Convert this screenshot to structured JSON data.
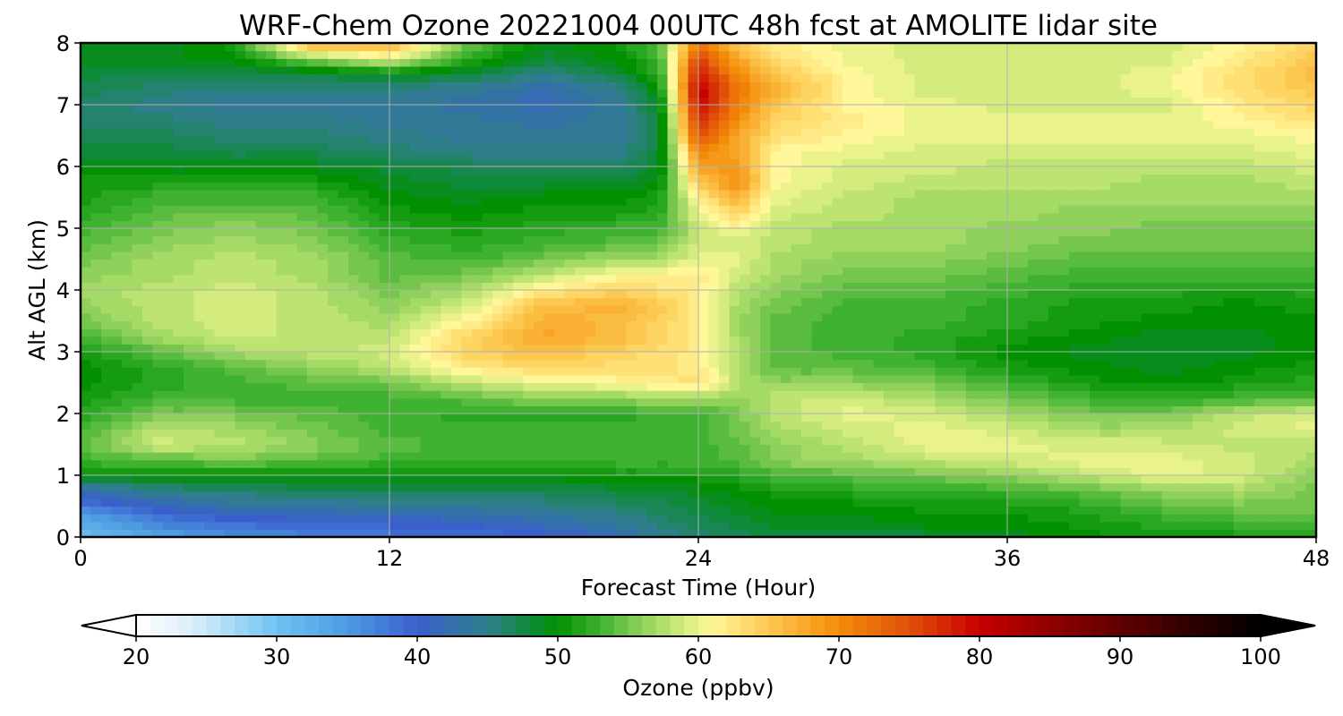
{
  "chart_data": {
    "type": "heatmap",
    "title": "WRF-Chem Ozone  20221004 00UTC 48h fcst at AMOLITE lidar site",
    "xlabel": "Forecast Time (Hour)",
    "ylabel": "Alt AGL (km)",
    "xlim": [
      0,
      48
    ],
    "ylim": [
      0,
      8
    ],
    "xticks": [
      "0",
      "12",
      "24",
      "36",
      "48"
    ],
    "yticks": [
      "0",
      "1",
      "2",
      "3",
      "4",
      "5",
      "6",
      "7",
      "8"
    ],
    "grid": true,
    "x": [
      0,
      3,
      6,
      9,
      12,
      15,
      18,
      21,
      22.5,
      24,
      25.5,
      27,
      30,
      33,
      36,
      39,
      42,
      45,
      48
    ],
    "y": [
      0,
      0.25,
      0.5,
      0.75,
      1,
      1.25,
      1.5,
      1.75,
      2,
      2.25,
      2.5,
      2.75,
      3,
      3.25,
      3.5,
      3.75,
      4,
      4.25,
      4.5,
      4.75,
      5,
      5.25,
      5.5,
      5.75,
      6,
      6.25,
      6.5,
      6.75,
      7,
      7.25,
      7.5,
      7.75,
      8
    ],
    "z": [
      [
        30,
        34,
        36,
        37,
        38,
        38,
        40,
        42,
        44,
        46,
        47,
        48,
        48,
        48,
        49,
        50,
        51,
        51,
        52
      ],
      [
        33,
        37,
        39,
        40,
        40,
        41,
        42,
        44,
        46,
        47,
        48,
        49,
        49,
        50,
        50,
        51,
        52,
        53,
        54
      ],
      [
        37,
        41,
        43,
        43,
        44,
        44,
        45,
        46,
        47,
        48,
        49,
        50,
        50,
        51,
        51,
        52,
        54,
        55,
        55
      ],
      [
        42,
        45,
        46,
        47,
        47,
        47,
        47,
        48,
        48,
        49,
        50,
        51,
        52,
        52,
        53,
        54,
        56,
        57,
        55
      ],
      [
        50,
        50,
        50,
        50,
        50,
        50,
        50,
        51,
        51,
        51,
        52,
        53,
        54,
        55,
        56,
        58,
        60,
        59,
        56
      ],
      [
        53,
        54,
        55,
        54,
        53,
        53,
        53,
        53,
        53,
        53,
        54,
        56,
        57,
        58,
        59,
        60,
        60,
        59,
        57
      ],
      [
        54,
        59,
        58,
        56,
        54,
        53,
        53,
        53,
        53,
        53,
        54,
        56,
        58,
        60,
        60,
        59,
        59,
        58,
        58
      ],
      [
        53,
        58,
        57,
        55,
        53,
        53,
        53,
        53,
        53,
        53,
        55,
        57,
        59,
        60,
        59,
        57,
        57,
        59,
        60
      ],
      [
        52,
        55,
        55,
        54,
        53,
        52,
        52,
        52,
        53,
        53,
        55,
        58,
        60,
        59,
        57,
        55,
        55,
        58,
        59
      ],
      [
        51,
        53,
        53,
        53,
        53,
        54,
        56,
        56,
        57,
        57,
        56,
        58,
        59,
        57,
        55,
        53,
        52,
        53,
        54
      ],
      [
        50,
        52,
        53,
        54,
        55,
        58,
        60,
        61,
        62,
        63,
        58,
        56,
        56,
        55,
        53,
        51,
        50,
        51,
        52
      ],
      [
        50,
        52,
        54,
        56,
        58,
        62,
        64,
        63,
        63,
        62,
        58,
        54,
        54,
        53,
        51,
        50,
        49,
        50,
        51
      ],
      [
        51,
        54,
        57,
        58,
        59,
        64,
        66,
        64,
        63,
        62,
        58,
        54,
        53,
        52,
        50,
        49,
        49,
        49,
        50
      ],
      [
        53,
        57,
        59,
        58,
        58,
        64,
        68,
        66,
        64,
        62,
        57,
        54,
        53,
        52,
        51,
        50,
        49,
        49,
        50
      ],
      [
        55,
        58,
        59,
        58,
        57,
        61,
        67,
        66,
        64,
        62,
        57,
        54,
        53,
        53,
        52,
        51,
        50,
        50,
        50
      ],
      [
        56,
        58,
        59,
        58,
        56,
        59,
        66,
        67,
        65,
        62,
        57,
        55,
        53,
        53,
        52,
        51,
        51,
        50,
        51
      ],
      [
        57,
        58,
        59,
        58,
        55,
        57,
        62,
        64,
        63,
        62,
        58,
        56,
        54,
        54,
        53,
        52,
        52,
        51,
        52
      ],
      [
        56,
        57,
        58,
        57,
        54,
        55,
        58,
        61,
        61,
        62,
        59,
        57,
        55,
        55,
        54,
        53,
        53,
        53,
        53
      ],
      [
        55,
        57,
        58,
        57,
        54,
        53,
        55,
        57,
        57,
        60,
        60,
        57,
        56,
        56,
        55,
        54,
        54,
        54,
        54
      ],
      [
        54,
        56,
        57,
        56,
        53,
        52,
        53,
        54,
        55,
        59,
        59,
        58,
        57,
        57,
        56,
        55,
        55,
        55,
        55
      ],
      [
        53,
        55,
        56,
        55,
        52,
        51,
        52,
        53,
        53,
        58,
        61,
        58,
        57,
        57,
        56,
        56,
        55,
        55,
        55
      ],
      [
        52,
        54,
        55,
        54,
        51,
        50,
        51,
        51,
        52,
        60,
        64,
        59,
        58,
        57,
        57,
        56,
        56,
        56,
        56
      ],
      [
        51,
        53,
        53,
        53,
        50,
        49,
        50,
        50,
        51,
        62,
        67,
        60,
        58,
        57,
        57,
        57,
        57,
        57,
        57
      ],
      [
        51,
        51,
        51,
        51,
        49,
        48,
        48,
        48,
        50,
        65,
        70,
        61,
        59,
        58,
        58,
        58,
        57,
        57,
        58
      ],
      [
        50,
        49,
        49,
        49,
        48,
        47,
        46,
        46,
        49,
        68,
        69,
        61,
        59,
        59,
        58,
        58,
        58,
        58,
        59
      ],
      [
        48,
        48,
        47,
        47,
        46,
        45,
        45,
        45,
        48,
        71,
        68,
        61,
        60,
        59,
        59,
        59,
        59,
        59,
        60
      ],
      [
        47,
        47,
        46,
        46,
        45,
        44,
        44,
        44,
        48,
        75,
        68,
        63,
        61,
        60,
        60,
        60,
        60,
        60,
        61
      ],
      [
        46,
        46,
        45,
        45,
        44,
        44,
        43,
        44,
        48,
        78,
        70,
        64,
        62,
        60,
        60,
        60,
        60,
        61,
        63
      ],
      [
        46,
        45,
        44,
        44,
        44,
        43,
        42,
        44,
        49,
        80,
        71,
        65,
        61,
        60,
        59,
        59,
        59,
        62,
        64
      ],
      [
        47,
        46,
        45,
        45,
        45,
        44,
        42,
        45,
        50,
        81,
        72,
        67,
        61,
        59,
        59,
        59,
        60,
        63,
        65
      ],
      [
        48,
        47,
        47,
        48,
        49,
        48,
        45,
        48,
        52,
        79,
        70,
        65,
        61,
        59,
        59,
        59,
        60,
        63,
        66
      ],
      [
        49,
        49,
        50,
        56,
        60,
        52,
        48,
        50,
        53,
        76,
        68,
        63,
        60,
        59,
        59,
        59,
        59,
        62,
        65
      ],
      [
        49,
        49,
        51,
        68,
        67,
        55,
        49,
        51,
        54,
        72,
        65,
        62,
        60,
        59,
        59,
        59,
        59,
        61,
        64
      ]
    ],
    "colorbar": {
      "label": "Ozone  (ppbv)",
      "min": 20,
      "max": 100,
      "ticks": [
        "20",
        "30",
        "40",
        "50",
        "60",
        "70",
        "80",
        "90",
        "100"
      ],
      "extend": "both"
    }
  },
  "colors": {
    "stops": [
      [
        20,
        "#ffffff"
      ],
      [
        24,
        "#dbeefa"
      ],
      [
        30,
        "#6fc2f3"
      ],
      [
        35,
        "#4d9be0"
      ],
      [
        40,
        "#3a5fcd"
      ],
      [
        45,
        "#2f7f8a"
      ],
      [
        48,
        "#0f8a3a"
      ],
      [
        50,
        "#009000"
      ],
      [
        53,
        "#3fb230"
      ],
      [
        56,
        "#8fd15a"
      ],
      [
        59,
        "#d4ec7e"
      ],
      [
        61,
        "#fff79a"
      ],
      [
        65,
        "#fdc850"
      ],
      [
        70,
        "#f48c0a"
      ],
      [
        75,
        "#e0500a"
      ],
      [
        80,
        "#c80000"
      ],
      [
        85,
        "#900000"
      ],
      [
        90,
        "#600000"
      ],
      [
        95,
        "#300000"
      ],
      [
        100,
        "#000000"
      ]
    ]
  }
}
